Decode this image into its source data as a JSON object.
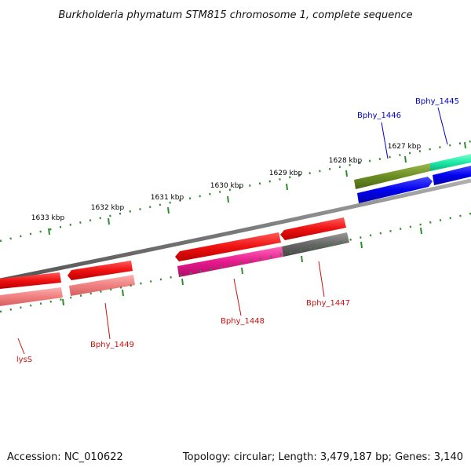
{
  "title": "Burkholderia phymatum STM815 chromosome 1, complete sequence",
  "footer": {
    "accession": "Accession: NC_010622",
    "summary": "Topology: circular; Length: 3,479,187 bp; Genes: 3,140"
  },
  "ticks": [
    {
      "label": "1633 kbp"
    },
    {
      "label": "1632 kbp"
    },
    {
      "label": "1631 kbp"
    },
    {
      "label": "1630 kbp"
    },
    {
      "label": "1629 kbp"
    },
    {
      "label": "1628 kbp"
    },
    {
      "label": "1627 kbp"
    }
  ],
  "genes": [
    {
      "id": "lysS",
      "label": "lysS",
      "strand": "reverse",
      "color": "#ee1111",
      "label_color": "#cc1111"
    },
    {
      "id": "Bphy_1449",
      "label": "Bphy_1449",
      "strand": "reverse",
      "color": "#ee1111",
      "label_color": "#cc1111"
    },
    {
      "id": "Bphy_1448",
      "label": "Bphy_1448",
      "strand": "reverse",
      "color": "#ee1111",
      "label_color": "#cc1111"
    },
    {
      "id": "Bphy_1447",
      "label": "Bphy_1447",
      "strand": "reverse",
      "color": "#ee1111",
      "label_color": "#cc1111"
    },
    {
      "id": "Bphy_1446",
      "label": "Bphy_1446",
      "strand": "forward",
      "color": "#0000ee",
      "label_color": "#0000cc"
    },
    {
      "id": "Bphy_1445",
      "label": "Bphy_1445",
      "strand": "forward",
      "color": "#0000ee",
      "label_color": "#0000cc"
    }
  ],
  "colors": {
    "backbone": "#7a7a7a",
    "tick": "#2e8b2e",
    "cds_reverse": "#ee1111",
    "cds_forward": "#0000ee",
    "feature_pink": "#f08080",
    "feature_magenta": "#e6198c",
    "feature_gray": "#666666",
    "feature_olive": "#6b8e23",
    "feature_teal": "#1de9a6"
  }
}
